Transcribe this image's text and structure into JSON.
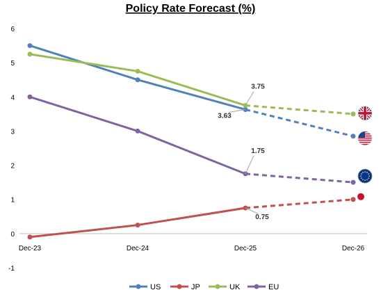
{
  "chart_data": {
    "type": "line",
    "title": "Policy Rate Forecast (%)",
    "xlabel": "",
    "ylabel": "",
    "categories": [
      "Dec-23",
      "Dec-24",
      "Dec-25",
      "Dec-26"
    ],
    "ylim": [
      -1,
      6
    ],
    "yticks": [
      "-1",
      "0",
      "1",
      "2",
      "3",
      "4",
      "5",
      "6"
    ],
    "grid": false,
    "legend_position": "bottom",
    "forecast_from_index": 2,
    "series": [
      {
        "name": "US",
        "color": "#4f81bd",
        "values": [
          5.5,
          4.5,
          3.63,
          2.85
        ],
        "flag_icon": "us-flag-icon"
      },
      {
        "name": "JP",
        "color": "#c0504d",
        "values": [
          -0.1,
          0.25,
          0.75,
          1.0
        ],
        "flag_icon": "jp-flag-icon"
      },
      {
        "name": "UK",
        "color": "#9bbb59",
        "values": [
          5.25,
          4.75,
          3.75,
          3.5
        ],
        "flag_icon": "uk-flag-icon"
      },
      {
        "name": "EU",
        "color": "#8064a2",
        "values": [
          4.0,
          3.0,
          1.75,
          1.5
        ],
        "flag_icon": "eu-flag-icon"
      }
    ],
    "annotations": [
      {
        "series": "UK",
        "index": 2,
        "text": "3.75"
      },
      {
        "series": "US",
        "index": 2,
        "text": "3.63"
      },
      {
        "series": "EU",
        "index": 2,
        "text": "1.75"
      },
      {
        "series": "JP",
        "index": 2,
        "text": "0.75"
      }
    ]
  }
}
